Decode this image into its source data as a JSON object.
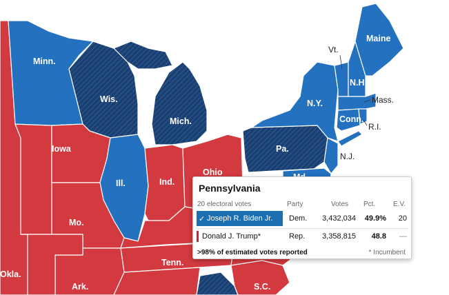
{
  "colors": {
    "dem": "#2371bf",
    "dem_flipped": "#1b3f6f",
    "rep": "#d23a3f",
    "background": "#ffffff"
  },
  "map": {
    "labels": {
      "minn": "Minn.",
      "wis": "Wis.",
      "mich": "Mich.",
      "iowa": "Iowa",
      "ill": "Ill.",
      "ind": "Ind.",
      "ohio": "Ohio",
      "pa": "Pa.",
      "ny": "N.Y.",
      "vt": "Vt.",
      "nh": "N.H.",
      "maine": "Maine",
      "mass": "Mass.",
      "conn": "Conn.",
      "ri": "R.I.",
      "nj": "N.J.",
      "md": "Md.",
      "mo": "Mo.",
      "tenn": "Tenn.",
      "ark": "Ark.",
      "okla": "Okla.",
      "sc": "S.C."
    }
  },
  "tooltip": {
    "title": "Pennsylvania",
    "electoral_votes": "20 electoral votes",
    "headers": {
      "party": "Party",
      "votes": "Votes",
      "pct": "Pct.",
      "ev": "E.V."
    },
    "candidates": [
      {
        "name": "Joseph R. Biden Jr.",
        "check": "✓",
        "party": "Dem.",
        "votes": "3,432,034",
        "pct": "49.9%",
        "ev": "20"
      },
      {
        "name": "Donald J. Trump*",
        "party": "Rep.",
        "votes": "3,358,815",
        "pct": "48.8",
        "ev": "—"
      }
    ],
    "reported": ">98% of estimated votes reported",
    "note": "* Incumbent"
  }
}
